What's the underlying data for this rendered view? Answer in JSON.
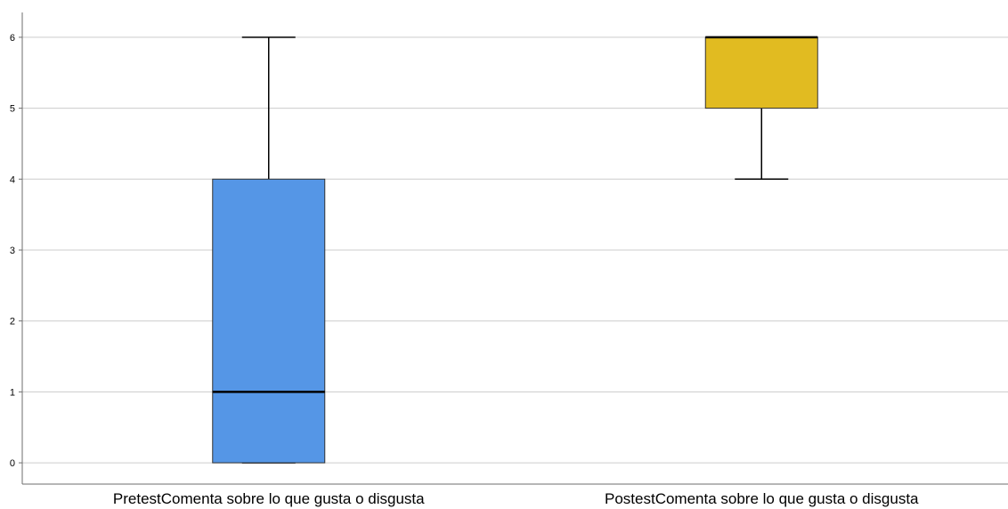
{
  "chart_data": {
    "type": "boxplot",
    "title": "",
    "xlabel": "",
    "ylabel": "",
    "ylim": [
      -0.3,
      6.35
    ],
    "yticks": [
      0,
      1,
      2,
      3,
      4,
      5,
      6
    ],
    "grid": true,
    "categories": [
      "PretestComenta sobre lo que gusta o disgusta",
      "PostestComenta sobre lo que gusta o disgusta"
    ],
    "series": [
      {
        "min": 0,
        "q1": 0,
        "median": 1,
        "q3": 4,
        "max": 6,
        "color": "#5596e6"
      },
      {
        "min": 4,
        "q1": 5,
        "median": 6,
        "q3": 6,
        "max": 6,
        "color": "#e1bb21"
      }
    ],
    "colors": {
      "grid": "#cccccc",
      "axis": "#6e6e6e",
      "stroke": "#000000"
    }
  }
}
